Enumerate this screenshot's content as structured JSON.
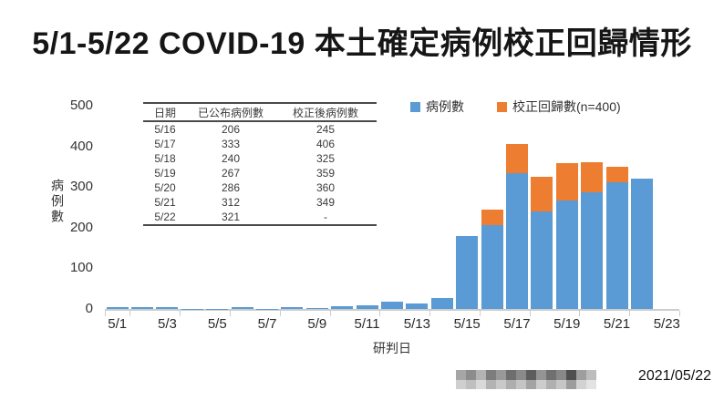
{
  "title": "5/1-5/22 COVID-19 本土確定病例校正回歸情形",
  "chart_data": {
    "type": "bar",
    "stacked": true,
    "title": "5/1-5/22 COVID-19 本土確定病例校正回歸情形",
    "x": [
      "5/1",
      "5/2",
      "5/3",
      "5/4",
      "5/5",
      "5/6",
      "5/7",
      "5/8",
      "5/9",
      "5/10",
      "5/11",
      "5/12",
      "5/13",
      "5/14",
      "5/15",
      "5/16",
      "5/17",
      "5/18",
      "5/19",
      "5/20",
      "5/21",
      "5/22",
      "5/23"
    ],
    "series": [
      {
        "name": "病例數",
        "color": "#5B9BD5",
        "values": [
          4,
          4,
          5,
          1,
          1,
          4,
          1,
          4,
          3,
          7,
          10,
          18,
          13,
          27,
          180,
          206,
          333,
          240,
          267,
          286,
          312,
          321,
          0
        ]
      },
      {
        "name": "校正回歸數(n=400)",
        "color": "#ED7D31",
        "values": [
          0,
          0,
          0,
          0,
          0,
          0,
          0,
          0,
          0,
          0,
          0,
          0,
          0,
          0,
          0,
          39,
          73,
          85,
          92,
          74,
          37,
          0,
          0
        ]
      }
    ],
    "xlabel": "研判日",
    "ylabel": "病例數",
    "ylim": [
      0,
      500
    ],
    "yticks": [
      0,
      100,
      200,
      300,
      400,
      500
    ],
    "xtick_labels": [
      "5/1",
      "5/3",
      "5/5",
      "5/7",
      "5/9",
      "5/11",
      "5/13",
      "5/15",
      "5/17",
      "5/19",
      "5/21",
      "5/23"
    ],
    "legend_position": "top-right",
    "grid": false
  },
  "table": {
    "headers": [
      "日期",
      "已公布病例數",
      "校正後病例數"
    ],
    "rows": [
      [
        "5/16",
        "206",
        "245"
      ],
      [
        "5/17",
        "333",
        "406"
      ],
      [
        "5/18",
        "240",
        "325"
      ],
      [
        "5/19",
        "267",
        "359"
      ],
      [
        "5/20",
        "286",
        "360"
      ],
      [
        "5/21",
        "312",
        "349"
      ],
      [
        "5/22",
        "321",
        "-"
      ]
    ]
  },
  "footer": {
    "date": "2021/05/22",
    "watermark_shades": [
      "#a6a6a6",
      "#8c8c8c",
      "#b3b3b3",
      "#7d7d7d",
      "#999999",
      "#6e6e6e",
      "#8a8a8a",
      "#5d5d5d",
      "#949494",
      "#707070",
      "#888888",
      "#4f4f4f",
      "#9e9e9e",
      "#bdbdbd",
      "#cfcfcf",
      "#bfbfbf",
      "#d9d9d9",
      "#b3b3b3",
      "#c9c9c9",
      "#aeaeae",
      "#c4c4c4",
      "#a3a3a3",
      "#cccccc",
      "#b0b0b0",
      "#c6c6c6",
      "#9c9c9c",
      "#d2d2d2",
      "#e3e3e3"
    ]
  },
  "colors": {
    "cases_blue": "#5B9BD5",
    "backlog_orange": "#ED7D31",
    "axis_gray": "#cccccc"
  }
}
